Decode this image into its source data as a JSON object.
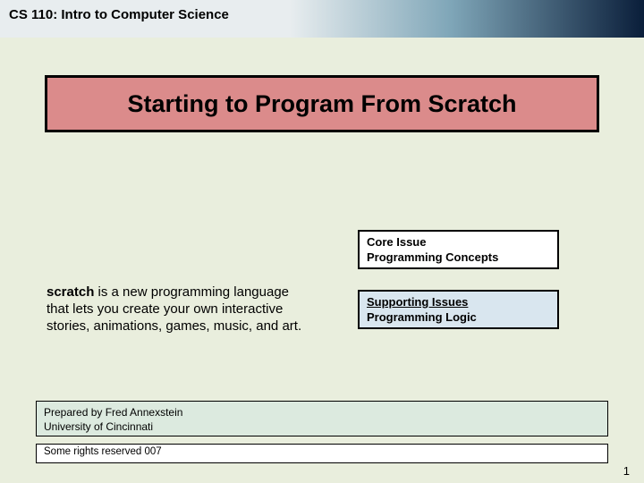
{
  "header": {
    "course_title": "CS 110: Intro to Computer Science"
  },
  "main_title": "Starting to Program From Scratch",
  "core_issue": {
    "label": "Core Issue",
    "text": "Programming Concepts"
  },
  "description": {
    "bold_word": "scratch",
    "rest": " is a new programming language that lets you create your own interactive stories, animations, games, music, and art."
  },
  "supporting": {
    "label": "Supporting Issues",
    "text": "Programming Logic"
  },
  "author": {
    "line1": "Prepared by Fred Annexstein",
    "line2": "University of Cincinnati"
  },
  "rights": "Some rights reserved 007",
  "page_number": "1",
  "colors": {
    "body_bg": "#e9eedd",
    "title_bg": "#db8b8b",
    "support_bg": "#d9e6ef",
    "author_bg": "#dceadf",
    "header_grad_start": "#e8edef",
    "header_grad_end": "#0a1e3a"
  }
}
